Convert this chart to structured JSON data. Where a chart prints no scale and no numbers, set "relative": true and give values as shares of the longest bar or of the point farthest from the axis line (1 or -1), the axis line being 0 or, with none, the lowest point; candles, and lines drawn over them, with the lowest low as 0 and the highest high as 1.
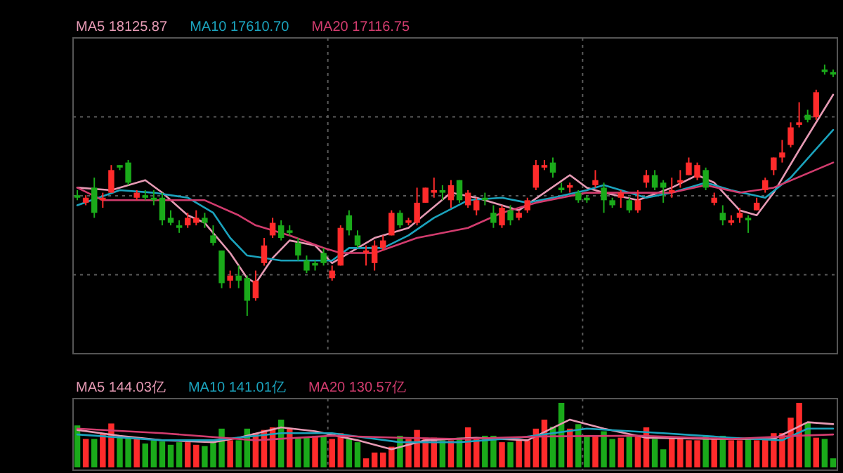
{
  "chart_data": [
    {
      "type": "candlestick",
      "relative": true,
      "legend": "top left",
      "grid": true,
      "categories": [
        null,
        null,
        null,
        null,
        null,
        null,
        null,
        null,
        null,
        null,
        null,
        null,
        null,
        null,
        null,
        null,
        null,
        null,
        null,
        null,
        null,
        null,
        null,
        null,
        null,
        null,
        null,
        null,
        null,
        null,
        null,
        null,
        null,
        null,
        null,
        null,
        null,
        null,
        null,
        null,
        null,
        null,
        null,
        null,
        null,
        null,
        null,
        null,
        null,
        null,
        null,
        null,
        null,
        null,
        null,
        null,
        null,
        null,
        null,
        null,
        null,
        null,
        null,
        null,
        null,
        null,
        null,
        null,
        null,
        null,
        null,
        null,
        null,
        null,
        null,
        null,
        null,
        null,
        null,
        null,
        null,
        null,
        null,
        null,
        null,
        null,
        null,
        null,
        null,
        null
      ],
      "ohlc": [
        [
          0.48,
          0.5,
          0.46,
          0.47
        ],
        [
          0.45,
          0.48,
          0.44,
          0.47
        ],
        [
          0.51,
          0.55,
          0.39,
          0.41
        ],
        [
          0.46,
          0.49,
          0.43,
          0.47
        ],
        [
          0.49,
          0.6,
          0.49,
          0.58
        ],
        [
          0.6,
          0.6,
          0.58,
          0.59
        ],
        [
          0.61,
          0.62,
          0.52,
          0.53
        ],
        [
          0.47,
          0.5,
          0.46,
          0.49
        ],
        [
          0.48,
          0.5,
          0.46,
          0.47
        ],
        [
          0.47,
          0.5,
          0.44,
          0.46
        ],
        [
          0.47,
          0.49,
          0.36,
          0.38
        ],
        [
          0.39,
          0.42,
          0.36,
          0.37
        ],
        [
          0.36,
          0.38,
          0.33,
          0.35
        ],
        [
          0.36,
          0.41,
          0.35,
          0.39
        ],
        [
          0.37,
          0.42,
          0.36,
          0.39
        ],
        [
          0.39,
          0.41,
          0.35,
          0.37
        ],
        [
          0.32,
          0.36,
          0.28,
          0.29
        ],
        [
          0.26,
          0.26,
          0.11,
          0.13
        ],
        [
          0.14,
          0.18,
          0.11,
          0.16
        ],
        [
          0.16,
          0.2,
          0.11,
          0.14
        ],
        [
          0.15,
          0.16,
          0.0,
          0.06
        ],
        [
          0.07,
          0.18,
          0.06,
          0.14
        ],
        [
          0.21,
          0.31,
          0.2,
          0.28
        ],
        [
          0.32,
          0.39,
          0.31,
          0.37
        ],
        [
          0.36,
          0.38,
          0.3,
          0.31
        ],
        [
          0.34,
          0.36,
          0.32,
          0.33
        ],
        [
          0.29,
          0.31,
          0.22,
          0.24
        ],
        [
          0.22,
          0.24,
          0.17,
          0.18
        ],
        [
          0.21,
          0.22,
          0.18,
          0.2
        ],
        [
          0.25,
          0.27,
          0.2,
          0.21
        ],
        [
          0.15,
          0.2,
          0.14,
          0.18
        ],
        [
          0.2,
          0.36,
          0.2,
          0.35
        ],
        [
          0.4,
          0.42,
          0.32,
          0.34
        ],
        [
          0.32,
          0.34,
          0.27,
          0.28
        ],
        [
          0.25,
          0.28,
          0.2,
          0.26
        ],
        [
          0.21,
          0.3,
          0.18,
          0.28
        ],
        [
          0.27,
          0.32,
          0.26,
          0.3
        ],
        [
          0.32,
          0.42,
          0.32,
          0.41
        ],
        [
          0.41,
          0.42,
          0.35,
          0.36
        ],
        [
          0.37,
          0.39,
          0.36,
          0.38
        ],
        [
          0.37,
          0.51,
          0.36,
          0.45
        ],
        [
          0.45,
          0.51,
          0.45,
          0.51
        ],
        [
          0.49,
          0.55,
          0.47,
          0.5
        ],
        [
          0.5,
          0.52,
          0.46,
          0.49
        ],
        [
          0.46,
          0.54,
          0.43,
          0.52
        ],
        [
          0.54,
          0.54,
          0.45,
          0.46
        ],
        [
          0.44,
          0.5,
          0.43,
          0.49
        ],
        [
          0.42,
          0.47,
          0.4,
          0.46
        ],
        [
          0.47,
          0.49,
          0.44,
          0.46
        ],
        [
          0.41,
          0.44,
          0.35,
          0.37
        ],
        [
          0.36,
          0.44,
          0.35,
          0.43
        ],
        [
          0.42,
          0.44,
          0.36,
          0.38
        ],
        [
          0.39,
          0.42,
          0.38,
          0.41
        ],
        [
          0.42,
          0.47,
          0.41,
          0.46
        ],
        [
          0.51,
          0.62,
          0.5,
          0.6
        ],
        [
          0.59,
          0.62,
          0.58,
          0.6
        ],
        [
          0.61,
          0.63,
          0.55,
          0.57
        ],
        [
          0.51,
          0.53,
          0.49,
          0.5
        ],
        [
          0.51,
          0.53,
          0.49,
          0.52
        ],
        [
          0.49,
          0.5,
          0.45,
          0.46
        ],
        [
          0.47,
          0.48,
          0.45,
          0.46
        ],
        [
          0.52,
          0.58,
          0.51,
          0.54
        ],
        [
          0.51,
          0.53,
          0.41,
          0.46
        ],
        [
          0.46,
          0.47,
          0.43,
          0.44
        ],
        [
          0.47,
          0.5,
          0.43,
          0.49
        ],
        [
          0.46,
          0.47,
          0.41,
          0.42
        ],
        [
          0.42,
          0.5,
          0.41,
          0.46
        ],
        [
          0.53,
          0.58,
          0.51,
          0.56
        ],
        [
          0.56,
          0.58,
          0.5,
          0.51
        ],
        [
          0.53,
          0.54,
          0.45,
          0.51
        ],
        [
          0.49,
          0.55,
          0.47,
          0.5
        ],
        [
          0.53,
          0.58,
          0.51,
          0.54
        ],
        [
          0.56,
          0.63,
          0.56,
          0.61
        ],
        [
          0.55,
          0.61,
          0.54,
          0.6
        ],
        [
          0.58,
          0.59,
          0.5,
          0.51
        ],
        [
          0.45,
          0.49,
          0.44,
          0.47
        ],
        [
          0.41,
          0.44,
          0.36,
          0.38
        ],
        [
          0.37,
          0.4,
          0.36,
          0.38
        ],
        [
          0.39,
          0.43,
          0.37,
          0.41
        ],
        [
          0.39,
          0.4,
          0.33,
          0.38
        ],
        [
          0.42,
          0.47,
          0.42,
          0.45
        ],
        [
          0.5,
          0.55,
          0.49,
          0.54
        ],
        [
          0.58,
          0.63,
          0.56,
          0.63
        ],
        [
          0.63,
          0.7,
          0.61,
          0.65
        ],
        [
          0.68,
          0.77,
          0.67,
          0.75
        ],
        [
          0.76,
          0.85,
          0.75,
          0.77
        ],
        [
          0.8,
          0.82,
          0.77,
          0.78
        ],
        [
          0.79,
          0.9,
          0.78,
          0.89
        ],
        [
          0.98,
          1.0,
          0.96,
          0.97
        ],
        [
          0.97,
          0.98,
          0.95,
          0.96
        ]
      ],
      "colors": [
        "#1aaa1a",
        "#ff2b2b",
        "#1aaa1a",
        "#ff2b2b",
        "#ff2b2b",
        "#1aaa1a",
        "#1aaa1a",
        "#ff2b2b",
        "#1aaa1a",
        "#1aaa1a",
        "#1aaa1a",
        "#1aaa1a",
        "#1aaa1a",
        "#ff2b2b",
        "#ff2b2b",
        "#1aaa1a",
        "#1aaa1a",
        "#1aaa1a",
        "#ff2b2b",
        "#1aaa1a",
        "#1aaa1a",
        "#ff2b2b",
        "#ff2b2b",
        "#ff2b2b",
        "#1aaa1a",
        "#1aaa1a",
        "#1aaa1a",
        "#1aaa1a",
        "#1aaa1a",
        "#1aaa1a",
        "#ff2b2b",
        "#ff2b2b",
        "#1aaa1a",
        "#1aaa1a",
        "#ff2b2b",
        "#ff2b2b",
        "#ff2b2b",
        "#ff2b2b",
        "#1aaa1a",
        "#ff2b2b",
        "#ff2b2b",
        "#ff2b2b",
        "#ff2b2b",
        "#1aaa1a",
        "#ff2b2b",
        "#1aaa1a",
        "#ff2b2b",
        "#ff2b2b",
        "#1aaa1a",
        "#1aaa1a",
        "#ff2b2b",
        "#1aaa1a",
        "#ff2b2b",
        "#ff2b2b",
        "#ff2b2b",
        "#ff2b2b",
        "#1aaa1a",
        "#1aaa1a",
        "#ff2b2b",
        "#1aaa1a",
        "#1aaa1a",
        "#ff2b2b",
        "#1aaa1a",
        "#1aaa1a",
        "#ff2b2b",
        "#1aaa1a",
        "#ff2b2b",
        "#ff2b2b",
        "#1aaa1a",
        "#1aaa1a",
        "#ff2b2b",
        "#ff2b2b",
        "#ff2b2b",
        "#ff2b2b",
        "#1aaa1a",
        "#ff2b2b",
        "#1aaa1a",
        "#ff2b2b",
        "#ff2b2b",
        "#1aaa1a",
        "#ff2b2b",
        "#ff2b2b",
        "#ff2b2b",
        "#ff2b2b",
        "#ff2b2b",
        "#ff2b2b",
        "#1aaa1a",
        "#ff2b2b",
        "#1aaa1a",
        "#1aaa1a"
      ],
      "series": [
        {
          "type": "line",
          "name": "MA5 18125.87",
          "color": "#e69ab4",
          "values": [
            0.51,
            null,
            null,
            null,
            0.5,
            null,
            null,
            null,
            0.54,
            null,
            0.49,
            null,
            null,
            0.4,
            null,
            0.37,
            null,
            null,
            0.25,
            null,
            0.15,
            0.13,
            null,
            0.23,
            null,
            0.3,
            null,
            null,
            0.28,
            null,
            0.21,
            null,
            null,
            null,
            null,
            0.31,
            null,
            null,
            null,
            0.35,
            null,
            null,
            null,
            null,
            0.49,
            null,
            null,
            0.47,
            null,
            null,
            0.44,
            null,
            0.42,
            null,
            null,
            0.49,
            null,
            null,
            0.56,
            null,
            0.51,
            null,
            0.49,
            null,
            null,
            null,
            0.46,
            null,
            null,
            null,
            0.51,
            null,
            null,
            0.56,
            null,
            0.53,
            null,
            null,
            0.42,
            null,
            0.4,
            null,
            0.49,
            null,
            null,
            0.66,
            null,
            null,
            null,
            0.88
          ]
        },
        {
          "type": "line",
          "name": "MA10 17610.70",
          "color": "#1ba3bd",
          "values": [
            0.44,
            null,
            null,
            null,
            null,
            0.5,
            null,
            null,
            null,
            0.49,
            null,
            null,
            null,
            0.47,
            null,
            null,
            0.41,
            null,
            0.31,
            null,
            0.24,
            null,
            null,
            null,
            0.22,
            null,
            null,
            0.22,
            null,
            null,
            0.22,
            null,
            0.27,
            null,
            null,
            null,
            0.27,
            null,
            null,
            0.32,
            null,
            null,
            0.39,
            null,
            null,
            null,
            0.46,
            null,
            null,
            null,
            0.47,
            null,
            null,
            0.45,
            null,
            null,
            0.47,
            null,
            null,
            null,
            0.5,
            null,
            0.52,
            null,
            null,
            null,
            null,
            0.47,
            null,
            null,
            0.49,
            null,
            null,
            null,
            0.53,
            null,
            null,
            0.5,
            null,
            null,
            null,
            0.47,
            null,
            null,
            0.55,
            null,
            null,
            null,
            null,
            0.74
          ]
        },
        {
          "type": "line",
          "name": "MA20 17116.75",
          "color": "#d23c6e",
          "values": [
            0.51,
            null,
            null,
            0.46,
            null,
            null,
            null,
            null,
            0.46,
            null,
            null,
            null,
            null,
            null,
            null,
            0.46,
            null,
            null,
            null,
            0.4,
            null,
            0.36,
            null,
            null,
            null,
            0.32,
            null,
            null,
            null,
            0.27,
            null,
            0.25,
            null,
            null,
            null,
            0.25,
            null,
            null,
            null,
            null,
            0.31,
            null,
            null,
            null,
            null,
            null,
            0.35,
            null,
            null,
            null,
            0.41,
            null,
            null,
            null,
            0.45,
            null,
            null,
            null,
            null,
            null,
            0.49,
            null,
            null,
            null,
            0.49,
            null,
            null,
            null,
            null,
            null,
            0.49,
            null,
            null,
            null,
            0.52,
            null,
            null,
            null,
            0.49,
            null,
            null,
            null,
            0.51,
            null,
            null,
            null,
            null,
            null,
            null,
            0.61
          ]
        }
      ]
    },
    {
      "type": "bar",
      "relative": true,
      "legend": "top left",
      "grid": "x",
      "categories": [
        null,
        null,
        null,
        null,
        null,
        null,
        null,
        null,
        null,
        null,
        null,
        null,
        null,
        null,
        null,
        null,
        null,
        null,
        null,
        null,
        null,
        null,
        null,
        null,
        null,
        null,
        null,
        null,
        null,
        null,
        null,
        null,
        null,
        null,
        null,
        null,
        null,
        null,
        null,
        null,
        null,
        null,
        null,
        null,
        null,
        null,
        null,
        null,
        null,
        null,
        null,
        null,
        null,
        null,
        null,
        null,
        null,
        null,
        null,
        null,
        null,
        null,
        null,
        null,
        null,
        null,
        null,
        null,
        null,
        null,
        null,
        null,
        null,
        null,
        null,
        null,
        null,
        null,
        null,
        null,
        null,
        null,
        null,
        null,
        null,
        null,
        null,
        null,
        null,
        null
      ],
      "series": [
        {
          "type": "bar",
          "values": [
            0.65,
            0.44,
            0.44,
            0.53,
            0.68,
            0.46,
            0.47,
            0.46,
            0.37,
            0.42,
            0.4,
            0.35,
            0.39,
            0.39,
            0.35,
            0.33,
            0.42,
            0.6,
            0.42,
            0.42,
            0.6,
            0.53,
            0.58,
            0.62,
            0.74,
            0.6,
            0.46,
            0.46,
            0.49,
            0.49,
            0.44,
            0.53,
            0.44,
            0.39,
            0.14,
            0.23,
            0.23,
            0.32,
            0.49,
            0.44,
            0.58,
            0.46,
            0.46,
            0.42,
            0.42,
            0.46,
            0.62,
            0.46,
            0.49,
            0.49,
            0.39,
            0.39,
            0.42,
            0.42,
            0.6,
            0.74,
            0.63,
            1.0,
            0.6,
            0.67,
            0.49,
            0.49,
            0.56,
            0.44,
            0.46,
            0.48,
            0.48,
            0.62,
            0.44,
            0.28,
            0.46,
            0.46,
            0.42,
            0.42,
            0.49,
            0.46,
            0.49,
            0.42,
            0.42,
            0.46,
            0.42,
            0.44,
            0.53,
            0.53,
            0.77,
            1.0,
            0.69,
            0.46,
            0.44,
            0.14
          ],
          "colors": [
            "#1aaa1a",
            "#ff2b2b",
            "#1aaa1a",
            "#ff2b2b",
            "#ff2b2b",
            "#1aaa1a",
            "#1aaa1a",
            "#ff2b2b",
            "#1aaa1a",
            "#1aaa1a",
            "#1aaa1a",
            "#1aaa1a",
            "#1aaa1a",
            "#ff2b2b",
            "#ff2b2b",
            "#1aaa1a",
            "#1aaa1a",
            "#1aaa1a",
            "#ff2b2b",
            "#1aaa1a",
            "#1aaa1a",
            "#ff2b2b",
            "#ff2b2b",
            "#ff2b2b",
            "#1aaa1a",
            "#ff2b2b",
            "#1aaa1a",
            "#1aaa1a",
            "#ff2b2b",
            "#1aaa1a",
            "#ff2b2b",
            "#ff2b2b",
            "#1aaa1a",
            "#1aaa1a",
            "#ff2b2b",
            "#ff2b2b",
            "#ff2b2b",
            "#ff2b2b",
            "#1aaa1a",
            "#ff2b2b",
            "#ff2b2b",
            "#ff2b2b",
            "#ff2b2b",
            "#1aaa1a",
            "#ff2b2b",
            "#1aaa1a",
            "#ff2b2b",
            "#ff2b2b",
            "#1aaa1a",
            "#1aaa1a",
            "#ff2b2b",
            "#1aaa1a",
            "#ff2b2b",
            "#ff2b2b",
            "#ff2b2b",
            "#ff2b2b",
            "#1aaa1a",
            "#1aaa1a",
            "#ff2b2b",
            "#1aaa1a",
            "#1aaa1a",
            "#ff2b2b",
            "#1aaa1a",
            "#1aaa1a",
            "#ff2b2b",
            "#1aaa1a",
            "#ff2b2b",
            "#ff2b2b",
            "#1aaa1a",
            "#1aaa1a",
            "#ff2b2b",
            "#ff2b2b",
            "#ff2b2b",
            "#ff2b2b",
            "#1aaa1a",
            "#ff2b2b",
            "#1aaa1a",
            "#ff2b2b",
            "#ff2b2b",
            "#1aaa1a",
            "#ff2b2b",
            "#ff2b2b",
            "#ff2b2b",
            "#ff2b2b",
            "#ff2b2b",
            "#ff2b2b",
            "#1aaa1a",
            "#ff2b2b",
            "#1aaa1a",
            "#1aaa1a"
          ]
        },
        {
          "type": "line",
          "name": "MA5 144.03亿",
          "color": "#e69ab4",
          "values": [
            0.58,
            null,
            null,
            null,
            null,
            0.49,
            null,
            null,
            null,
            null,
            0.42,
            null,
            null,
            null,
            null,
            null,
            0.39,
            null,
            null,
            0.46,
            null,
            null,
            null,
            null,
            0.62,
            null,
            null,
            null,
            0.56,
            null,
            null,
            null,
            null,
            0.42,
            null,
            null,
            null,
            0.28,
            null,
            null,
            null,
            0.42,
            null,
            null,
            null,
            null,
            null,
            0.46,
            null,
            null,
            null,
            null,
            null,
            0.42,
            null,
            null,
            null,
            null,
            0.74,
            null,
            null,
            null,
            0.6,
            null,
            null,
            null,
            null,
            0.46,
            null,
            null,
            null,
            null,
            null,
            null,
            null,
            0.44,
            null,
            null,
            null,
            null,
            null,
            null,
            0.44,
            null,
            null,
            null,
            0.7,
            null,
            null,
            0.67
          ]
        },
        {
          "type": "line",
          "name": "MA10 141.01亿",
          "color": "#1ba3bd",
          "values": [
            0.51,
            null,
            null,
            null,
            null,
            null,
            null,
            null,
            null,
            null,
            0.42,
            null,
            null,
            null,
            null,
            null,
            0.42,
            null,
            null,
            null,
            null,
            null,
            null,
            null,
            0.53,
            null,
            null,
            null,
            null,
            null,
            0.53,
            null,
            null,
            null,
            null,
            null,
            null,
            null,
            0.39,
            null,
            null,
            null,
            null,
            null,
            null,
            0.39,
            null,
            null,
            null,
            null,
            null,
            null,
            0.46,
            null,
            null,
            null,
            null,
            null,
            null,
            null,
            0.6,
            null,
            null,
            null,
            null,
            null,
            null,
            null,
            null,
            0.53,
            null,
            null,
            null,
            null,
            null,
            null,
            null,
            0.46,
            null,
            null,
            null,
            null,
            null,
            0.42,
            null,
            null,
            0.6,
            null,
            null,
            0.6
          ]
        },
        {
          "type": "line",
          "name": "MA20 130.57亿",
          "color": "#d23c6e",
          "values": [
            0.6,
            null,
            null,
            null,
            null,
            null,
            null,
            null,
            null,
            null,
            0.53,
            null,
            null,
            null,
            null,
            null,
            null,
            null,
            null,
            null,
            null,
            0.42,
            null,
            null,
            null,
            null,
            null,
            null,
            null,
            null,
            0.49,
            null,
            null,
            null,
            null,
            null,
            null,
            null,
            0.46,
            null,
            null,
            null,
            null,
            null,
            null,
            0.44,
            null,
            null,
            null,
            null,
            null,
            null,
            null,
            null,
            null,
            0.48,
            null,
            null,
            null,
            null,
            null,
            null,
            null,
            null,
            null,
            null,
            0.49,
            null,
            null,
            null,
            null,
            null,
            null,
            null,
            null,
            null,
            null,
            0.44,
            null,
            null,
            null,
            null,
            null,
            null,
            null,
            0.49,
            null,
            null,
            null,
            0.51
          ]
        }
      ]
    }
  ]
}
